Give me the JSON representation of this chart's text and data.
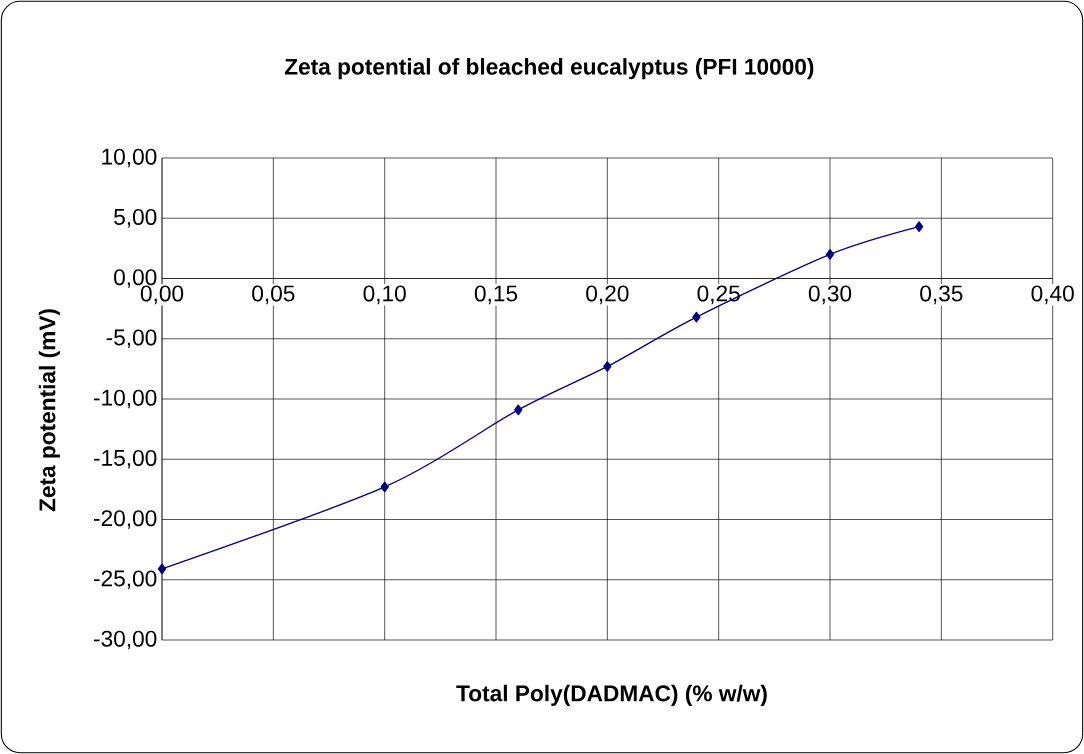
{
  "chart_data": {
    "type": "line",
    "title": "Zeta potential of bleached eucalyptus (PFI 10000)",
    "xlabel": "Total Poly(DADMAC) (% w/w)",
    "ylabel": "Zeta potential (mV)",
    "x": [
      0.0,
      0.1,
      0.16,
      0.2,
      0.24,
      0.3,
      0.34
    ],
    "series": [
      {
        "color": "#000080",
        "values": [
          -24.1,
          -17.3,
          -10.9,
          -7.3,
          -3.2,
          2.0,
          4.3
        ]
      }
    ],
    "xlim": [
      0,
      0.4
    ],
    "ylim": [
      -30,
      10
    ],
    "xticks": [
      {
        "value": 0,
        "label": "0,00"
      },
      {
        "value": 0.05,
        "label": "0,05"
      },
      {
        "value": 0.1,
        "label": "0,10"
      },
      {
        "value": 0.15,
        "label": "0,15"
      },
      {
        "value": 0.2,
        "label": "0,20"
      },
      {
        "value": 0.25,
        "label": "0,25"
      },
      {
        "value": 0.3,
        "label": "0,30"
      },
      {
        "value": 0.35,
        "label": "0,35"
      },
      {
        "value": 0.4,
        "label": "0,40"
      }
    ],
    "yticks": [
      {
        "value": -30,
        "label": "-30,00"
      },
      {
        "value": -25,
        "label": "-25,00"
      },
      {
        "value": -20,
        "label": "-20,00"
      },
      {
        "value": -15,
        "label": "-15,00"
      },
      {
        "value": -10,
        "label": "-10,00"
      },
      {
        "value": -5,
        "label": "-5,00"
      },
      {
        "value": 0,
        "label": "0,00"
      },
      {
        "value": 5,
        "label": "5,00"
      },
      {
        "value": 10,
        "label": "10,00"
      }
    ],
    "grid": true,
    "marker": "diamond",
    "line_style": "solid"
  }
}
